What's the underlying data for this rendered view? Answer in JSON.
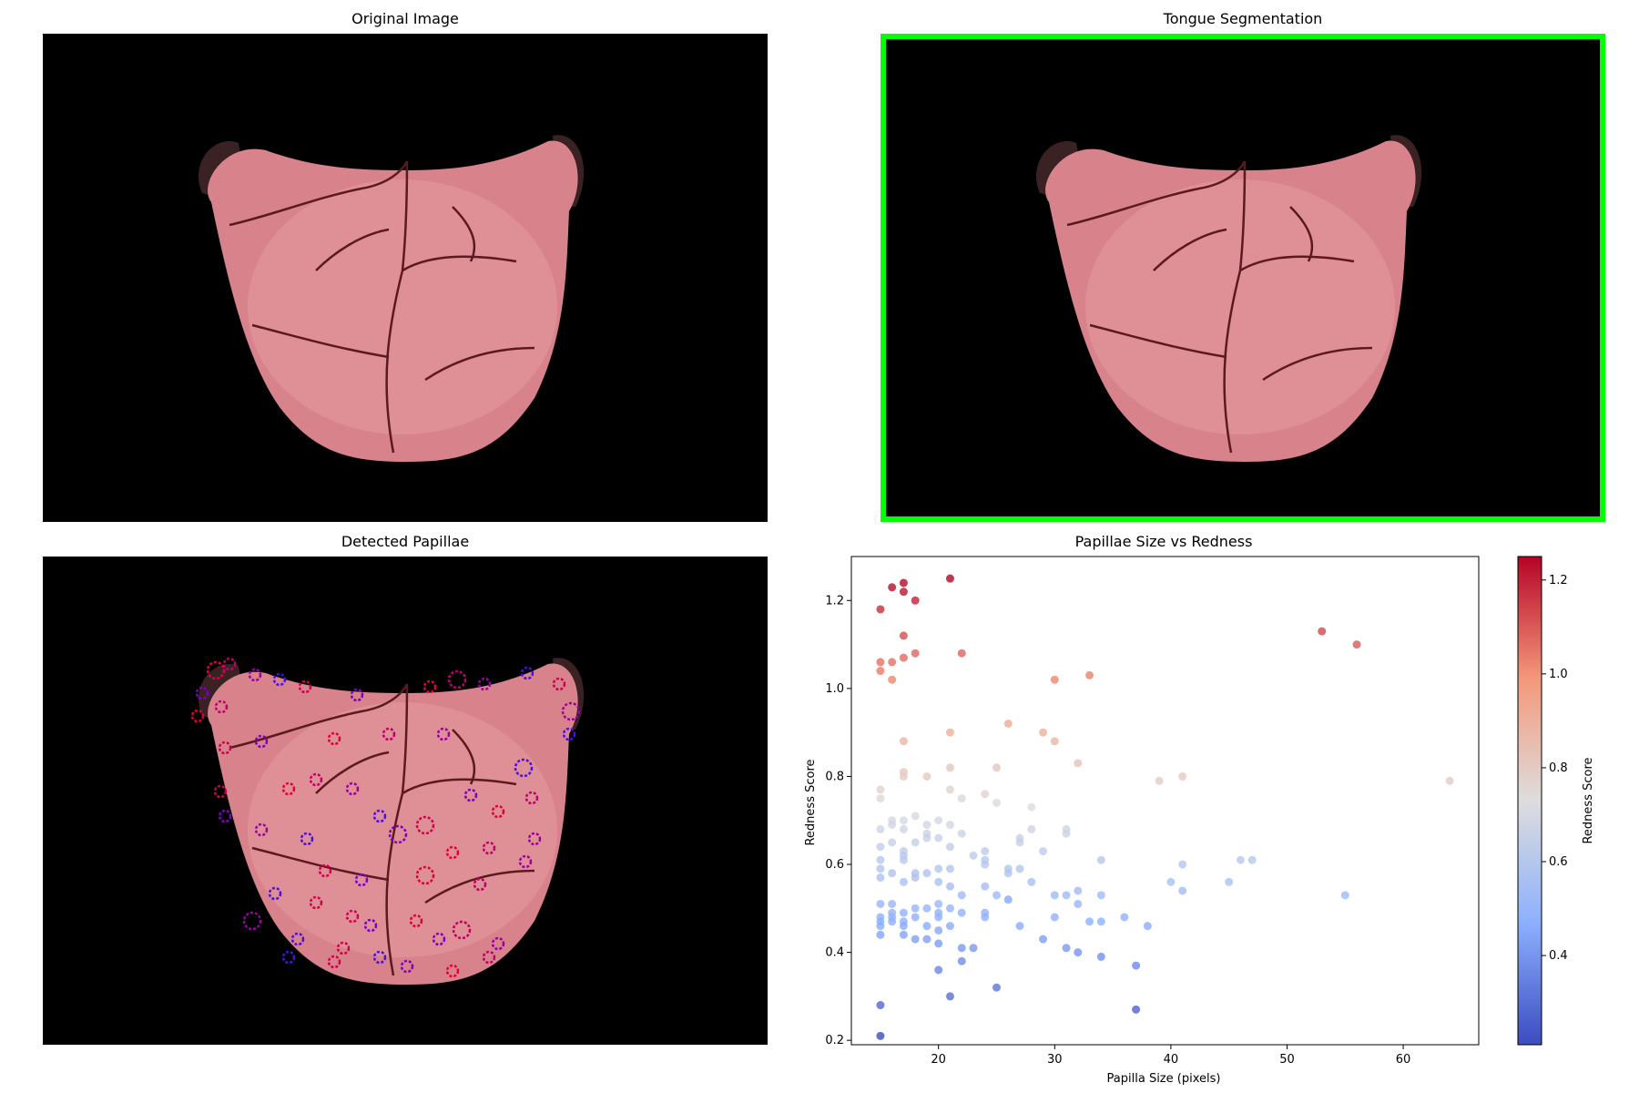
{
  "panels": {
    "original_title": "Original Image",
    "segmentation_title": "Tongue Segmentation",
    "papillae_title": "Detected Papillae",
    "scatter_title": "Papillae Size vs Redness"
  },
  "colors": {
    "segmentation_border": "#00ff00",
    "background": "#000000",
    "tongue_fill": "#d8838b",
    "fissure": "#5a1a1f"
  },
  "chart_data": {
    "type": "scatter",
    "title": "Papillae Size vs Redness",
    "xlabel": "Papilla Size (pixels)",
    "ylabel": "Redness Score",
    "xlim": [
      12.5,
      66.5
    ],
    "ylim": [
      0.19,
      1.3
    ],
    "xticks": [
      20,
      30,
      40,
      50,
      60
    ],
    "yticks": [
      0.2,
      0.4,
      0.6,
      0.8,
      1.0,
      1.2
    ],
    "colormap": "coolwarm",
    "colorbar": {
      "label": "Redness Score",
      "min": 0.21,
      "max": 1.25,
      "ticks": [
        0.4,
        0.6,
        0.8,
        1.0,
        1.2
      ]
    },
    "points": [
      {
        "x": 15,
        "y": 1.18
      },
      {
        "x": 16,
        "y": 1.23
      },
      {
        "x": 17,
        "y": 1.24
      },
      {
        "x": 17,
        "y": 1.22
      },
      {
        "x": 18,
        "y": 1.2
      },
      {
        "x": 21,
        "y": 1.25
      },
      {
        "x": 17,
        "y": 1.12
      },
      {
        "x": 15,
        "y": 1.06
      },
      {
        "x": 15,
        "y": 1.04
      },
      {
        "x": 16,
        "y": 1.06
      },
      {
        "x": 16,
        "y": 1.02
      },
      {
        "x": 17,
        "y": 1.07
      },
      {
        "x": 18,
        "y": 1.08
      },
      {
        "x": 22,
        "y": 1.08
      },
      {
        "x": 30,
        "y": 1.02
      },
      {
        "x": 33,
        "y": 1.03
      },
      {
        "x": 53,
        "y": 1.13
      },
      {
        "x": 56,
        "y": 1.1
      },
      {
        "x": 17,
        "y": 0.88
      },
      {
        "x": 21,
        "y": 0.9
      },
      {
        "x": 26,
        "y": 0.92
      },
      {
        "x": 29,
        "y": 0.9
      },
      {
        "x": 30,
        "y": 0.88
      },
      {
        "x": 17,
        "y": 0.81
      },
      {
        "x": 17,
        "y": 0.8
      },
      {
        "x": 19,
        "y": 0.8
      },
      {
        "x": 21,
        "y": 0.82
      },
      {
        "x": 25,
        "y": 0.82
      },
      {
        "x": 32,
        "y": 0.83
      },
      {
        "x": 39,
        "y": 0.79
      },
      {
        "x": 41,
        "y": 0.8
      },
      {
        "x": 64,
        "y": 0.79
      },
      {
        "x": 15,
        "y": 0.77
      },
      {
        "x": 15,
        "y": 0.75
      },
      {
        "x": 21,
        "y": 0.77
      },
      {
        "x": 22,
        "y": 0.75
      },
      {
        "x": 24,
        "y": 0.76
      },
      {
        "x": 25,
        "y": 0.74
      },
      {
        "x": 28,
        "y": 0.73
      },
      {
        "x": 16,
        "y": 0.7
      },
      {
        "x": 16,
        "y": 0.69
      },
      {
        "x": 17,
        "y": 0.7
      },
      {
        "x": 17,
        "y": 0.68
      },
      {
        "x": 18,
        "y": 0.71
      },
      {
        "x": 19,
        "y": 0.69
      },
      {
        "x": 20,
        "y": 0.7
      },
      {
        "x": 21,
        "y": 0.69
      },
      {
        "x": 15,
        "y": 0.68
      },
      {
        "x": 15,
        "y": 0.64
      },
      {
        "x": 16,
        "y": 0.65
      },
      {
        "x": 17,
        "y": 0.63
      },
      {
        "x": 17,
        "y": 0.62
      },
      {
        "x": 18,
        "y": 0.65
      },
      {
        "x": 19,
        "y": 0.67
      },
      {
        "x": 19,
        "y": 0.66
      },
      {
        "x": 20,
        "y": 0.66
      },
      {
        "x": 21,
        "y": 0.64
      },
      {
        "x": 22,
        "y": 0.67
      },
      {
        "x": 23,
        "y": 0.62
      },
      {
        "x": 24,
        "y": 0.63
      },
      {
        "x": 24,
        "y": 0.61
      },
      {
        "x": 26,
        "y": 0.59
      },
      {
        "x": 27,
        "y": 0.66
      },
      {
        "x": 27,
        "y": 0.65
      },
      {
        "x": 28,
        "y": 0.68
      },
      {
        "x": 29,
        "y": 0.63
      },
      {
        "x": 31,
        "y": 0.68
      },
      {
        "x": 31,
        "y": 0.67
      },
      {
        "x": 34,
        "y": 0.61
      },
      {
        "x": 15,
        "y": 0.61
      },
      {
        "x": 15,
        "y": 0.59
      },
      {
        "x": 15,
        "y": 0.57
      },
      {
        "x": 16,
        "y": 0.58
      },
      {
        "x": 17,
        "y": 0.56
      },
      {
        "x": 17,
        "y": 0.61
      },
      {
        "x": 18,
        "y": 0.58
      },
      {
        "x": 18,
        "y": 0.57
      },
      {
        "x": 19,
        "y": 0.58
      },
      {
        "x": 20,
        "y": 0.59
      },
      {
        "x": 20,
        "y": 0.56
      },
      {
        "x": 21,
        "y": 0.59
      },
      {
        "x": 21,
        "y": 0.55
      },
      {
        "x": 22,
        "y": 0.53
      },
      {
        "x": 24,
        "y": 0.6
      },
      {
        "x": 24,
        "y": 0.55
      },
      {
        "x": 25,
        "y": 0.53
      },
      {
        "x": 26,
        "y": 0.58
      },
      {
        "x": 26,
        "y": 0.52
      },
      {
        "x": 27,
        "y": 0.59
      },
      {
        "x": 28,
        "y": 0.56
      },
      {
        "x": 30,
        "y": 0.53
      },
      {
        "x": 31,
        "y": 0.53
      },
      {
        "x": 32,
        "y": 0.54
      },
      {
        "x": 32,
        "y": 0.51
      },
      {
        "x": 34,
        "y": 0.53
      },
      {
        "x": 41,
        "y": 0.6
      },
      {
        "x": 40,
        "y": 0.56
      },
      {
        "x": 41,
        "y": 0.54
      },
      {
        "x": 45,
        "y": 0.56
      },
      {
        "x": 46,
        "y": 0.61
      },
      {
        "x": 47,
        "y": 0.61
      },
      {
        "x": 55,
        "y": 0.53
      },
      {
        "x": 15,
        "y": 0.51
      },
      {
        "x": 15,
        "y": 0.48
      },
      {
        "x": 15,
        "y": 0.47
      },
      {
        "x": 15,
        "y": 0.46
      },
      {
        "x": 15,
        "y": 0.44
      },
      {
        "x": 16,
        "y": 0.51
      },
      {
        "x": 16,
        "y": 0.49
      },
      {
        "x": 16,
        "y": 0.48
      },
      {
        "x": 16,
        "y": 0.47
      },
      {
        "x": 17,
        "y": 0.49
      },
      {
        "x": 17,
        "y": 0.47
      },
      {
        "x": 17,
        "y": 0.46
      },
      {
        "x": 17,
        "y": 0.44
      },
      {
        "x": 18,
        "y": 0.5
      },
      {
        "x": 18,
        "y": 0.48
      },
      {
        "x": 18,
        "y": 0.43
      },
      {
        "x": 19,
        "y": 0.5
      },
      {
        "x": 19,
        "y": 0.46
      },
      {
        "x": 19,
        "y": 0.43
      },
      {
        "x": 20,
        "y": 0.51
      },
      {
        "x": 20,
        "y": 0.49
      },
      {
        "x": 20,
        "y": 0.48
      },
      {
        "x": 20,
        "y": 0.45
      },
      {
        "x": 20,
        "y": 0.42
      },
      {
        "x": 21,
        "y": 0.5
      },
      {
        "x": 21,
        "y": 0.46
      },
      {
        "x": 22,
        "y": 0.49
      },
      {
        "x": 22,
        "y": 0.41
      },
      {
        "x": 23,
        "y": 0.41
      },
      {
        "x": 24,
        "y": 0.49
      },
      {
        "x": 24,
        "y": 0.48
      },
      {
        "x": 26,
        "y": 0.52
      },
      {
        "x": 27,
        "y": 0.46
      },
      {
        "x": 29,
        "y": 0.43
      },
      {
        "x": 30,
        "y": 0.48
      },
      {
        "x": 31,
        "y": 0.41
      },
      {
        "x": 32,
        "y": 0.4
      },
      {
        "x": 33,
        "y": 0.47
      },
      {
        "x": 34,
        "y": 0.47
      },
      {
        "x": 34,
        "y": 0.39
      },
      {
        "x": 36,
        "y": 0.48
      },
      {
        "x": 37,
        "y": 0.37
      },
      {
        "x": 38,
        "y": 0.46
      },
      {
        "x": 20,
        "y": 0.36
      },
      {
        "x": 22,
        "y": 0.38
      },
      {
        "x": 21,
        "y": 0.3
      },
      {
        "x": 25,
        "y": 0.32
      },
      {
        "x": 15,
        "y": 0.28
      },
      {
        "x": 15,
        "y": 0.21
      },
      {
        "x": 37,
        "y": 0.27
      }
    ]
  }
}
